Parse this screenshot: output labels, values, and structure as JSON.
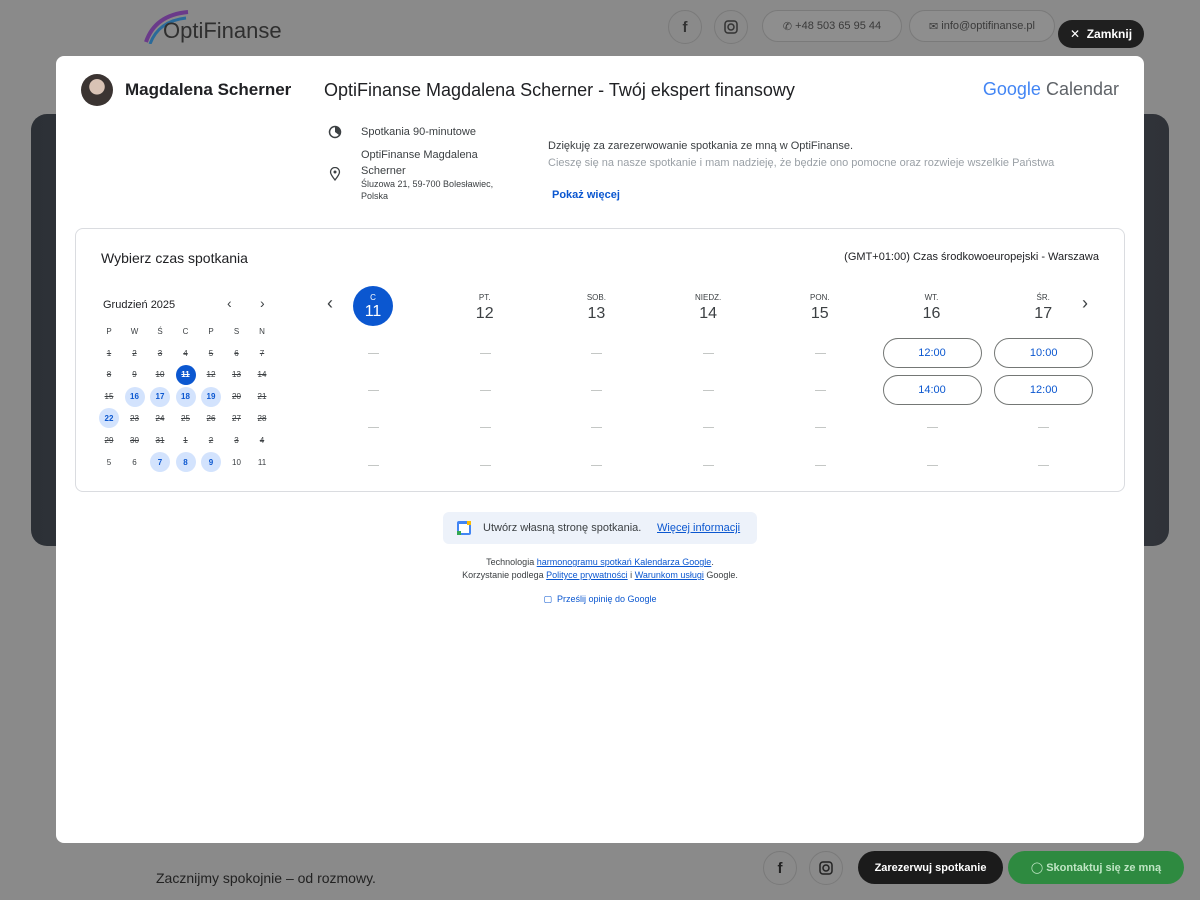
{
  "site": {
    "logo": "OptiFinanse",
    "phone": "+48 503 65 95 44",
    "email": "info@optifinanse.pl",
    "close": "Zamknij",
    "tagline": "Zacznijmy spokojnie – od rozmowy.",
    "book": "Zarezerwuj spotkanie",
    "contact": "Skontaktuj się ze mną"
  },
  "modal": {
    "host": "Magdalena Scherner",
    "title": "OptiFinanse Magdalena Scherner - Twój ekspert finansowy",
    "brand_google": "Google",
    "brand_calendar": "Calendar",
    "duration": "Spotkania 90-minutowe",
    "location_name": "OptiFinanse Magdalena Scherner",
    "address": "Śluzowa 21, 59-700 Bolesławiec, Polska",
    "description": [
      "Dziękuję za zarezerwowanie spotkania ze mną w OptiFinanse.",
      "Cieszę się na nasze spotkanie i mam nadzieję, że będzie ono pomocne oraz rozwieje wszelkie Państwa"
    ],
    "show_more": "Pokaż więcej"
  },
  "picker": {
    "heading": "Wybierz czas spotkania",
    "timezone": "(GMT+01:00) Czas środkowoeuropejski - Warszawa",
    "month": "Grudzień 2025",
    "weekdays": [
      "P",
      "W",
      "Ś",
      "C",
      "P",
      "S",
      "N"
    ],
    "weeks": [
      [
        {
          "day": 1,
          "state": "past"
        },
        {
          "day": 2,
          "state": "past"
        },
        {
          "day": 3,
          "state": "past"
        },
        {
          "day": 4,
          "state": "past"
        },
        {
          "day": 5,
          "state": "past"
        },
        {
          "day": 6,
          "state": "past"
        },
        {
          "day": 7,
          "state": "past"
        }
      ],
      [
        {
          "day": 8,
          "state": "past"
        },
        {
          "day": 9,
          "state": "past"
        },
        {
          "day": 10,
          "state": "past"
        },
        {
          "day": 11,
          "state": "selected"
        },
        {
          "day": 12,
          "state": "past"
        },
        {
          "day": 13,
          "state": "past"
        },
        {
          "day": 14,
          "state": "past"
        }
      ],
      [
        {
          "day": 15,
          "state": "past"
        },
        {
          "day": 16,
          "state": "available"
        },
        {
          "day": 17,
          "state": "available"
        },
        {
          "day": 18,
          "state": "available"
        },
        {
          "day": 19,
          "state": "available"
        },
        {
          "day": 20,
          "state": "past"
        },
        {
          "day": 21,
          "state": "past"
        }
      ],
      [
        {
          "day": 22,
          "state": "available"
        },
        {
          "day": 23,
          "state": "past"
        },
        {
          "day": 24,
          "state": "past"
        },
        {
          "day": 25,
          "state": "past"
        },
        {
          "day": 26,
          "state": "past"
        },
        {
          "day": 27,
          "state": "past"
        },
        {
          "day": 28,
          "state": "past"
        }
      ],
      [
        {
          "day": 29,
          "state": "past"
        },
        {
          "day": 30,
          "state": "past"
        },
        {
          "day": 31,
          "state": "past"
        },
        {
          "day": 1,
          "state": "past"
        },
        {
          "day": 2,
          "state": "past"
        },
        {
          "day": 3,
          "state": "past"
        },
        {
          "day": 4,
          "state": "past"
        }
      ],
      [
        {
          "day": 5,
          "state": "normal"
        },
        {
          "day": 6,
          "state": "normal"
        },
        {
          "day": 7,
          "state": "available"
        },
        {
          "day": 8,
          "state": "available"
        },
        {
          "day": 9,
          "state": "available"
        },
        {
          "day": 10,
          "state": "normal"
        },
        {
          "day": 11,
          "state": "normal"
        }
      ]
    ],
    "days": [
      {
        "weekday": "C",
        "date": 11,
        "selected": true,
        "slots": []
      },
      {
        "weekday": "PT.",
        "date": 12,
        "slots": []
      },
      {
        "weekday": "SOB.",
        "date": 13,
        "slots": []
      },
      {
        "weekday": "NIEDZ.",
        "date": 14,
        "slots": []
      },
      {
        "weekday": "PON.",
        "date": 15,
        "slots": []
      },
      {
        "weekday": "WT.",
        "date": 16,
        "slots": [
          "12:00",
          "14:00"
        ]
      },
      {
        "weekday": "ŚR.",
        "date": 17,
        "slots": [
          "10:00",
          "12:00"
        ]
      }
    ]
  },
  "footer": {
    "create_page": "Utwórz własną stronę spotkania.",
    "more_info": "Więcej informacji",
    "tech_prefix": "Technologia ",
    "tech_link": "harmonogramu spotkań Kalendarza Google",
    "tech_suffix": ".",
    "terms_prefix": "Korzystanie podlega ",
    "privacy": "Polityce prywatności",
    "terms_join": " i ",
    "terms": "Warunkom usługi",
    "terms_suffix": " Google.",
    "feedback": "Prześlij opinię do Google"
  }
}
